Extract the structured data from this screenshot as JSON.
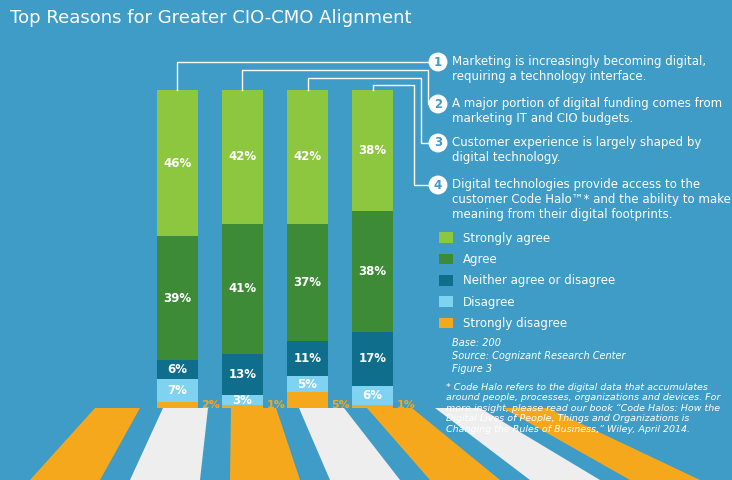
{
  "chart_data": {
    "type": "bar",
    "stacked": true,
    "title": "Top Reasons for Greater CIO-CMO Alignment",
    "categories": [
      "Marketing is increasingly becoming digital, requiring a technology interface.",
      "A major portion of digital funding comes from marketing IT and CIO budgets.",
      "Customer experience is largely shaped by digital technology.",
      "Digital technologies provide access to the customer Code Halo™* and the ability to make meaning from their digital footprints."
    ],
    "category_numbers": [
      1,
      2,
      3,
      4
    ],
    "series": [
      {
        "name": "Strongly agree",
        "color": "#8dc63f",
        "values": [
          46,
          42,
          42,
          38
        ],
        "value_labels": [
          "46%",
          "42%",
          "42%",
          "38%"
        ]
      },
      {
        "name": "Agree",
        "color": "#3d8b37",
        "values": [
          39,
          41,
          37,
          38
        ],
        "value_labels": [
          "39%",
          "41%",
          "37%",
          "38%"
        ]
      },
      {
        "name": "Neither agree or disagree",
        "color": "#0e6e8c",
        "values": [
          6,
          13,
          11,
          17
        ],
        "value_labels": [
          "6%",
          "13%",
          "11%",
          "17%"
        ]
      },
      {
        "name": "Disagree",
        "color": "#7fd3f0",
        "values": [
          7,
          3,
          5,
          6
        ],
        "value_labels": [
          "7%",
          "3%",
          "5%",
          "6%"
        ]
      },
      {
        "name": "Strongly disagree",
        "color": "#f6a81c",
        "values": [
          2,
          1,
          5,
          1
        ],
        "value_labels": [
          "2%",
          "1%",
          "5%",
          "1%"
        ]
      }
    ],
    "ylim": [
      0,
      100
    ],
    "data_labels": true,
    "tick_labels": false,
    "legend": "right",
    "notes": [
      "Base: 200",
      "Source: Cognizant Research Center",
      "Figure 3"
    ],
    "footnote": "* Code Halo refers to the digital data that accumulates around people, processes, organizations and devices. For more insight, please read our book “Code Halos: How the Digital Lives of People, Things and Organizations is Changing the Rules of Business,” Wiley, April 2014."
  }
}
